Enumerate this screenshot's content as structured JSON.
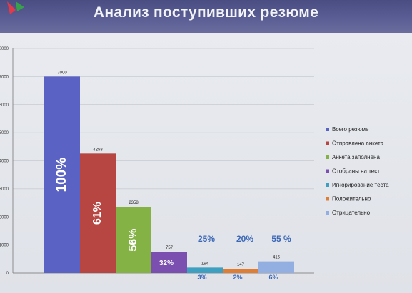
{
  "header": {
    "title": "Анализ поступивших резюме"
  },
  "chart_data": {
    "type": "bar",
    "title": "Анализ поступивших резюме",
    "ylim": [
      0,
      8000
    ],
    "yticks": [
      "0",
      "1000",
      "2000",
      "3000",
      "4000",
      "5000",
      "6000",
      "7000",
      "8000"
    ],
    "grid": true,
    "legend": "right",
    "series": [
      {
        "name": "Всего резюме",
        "value": 7000,
        "value_label": "7000",
        "percent": "100%",
        "color": "#5a62c4"
      },
      {
        "name": "Отправлена анкета",
        "value": 4258,
        "value_label": "4258",
        "percent": "61%",
        "color": "#b74541"
      },
      {
        "name": "Анкета заполнена",
        "value": 2358,
        "value_label": "2358",
        "percent": "56%",
        "color": "#84b245"
      },
      {
        "name": "Отобраны на тест",
        "value": 757,
        "value_label": "757",
        "percent": "32%",
        "color": "#7a4fb0"
      },
      {
        "name": "Игнорирование теста",
        "value": 194,
        "value_label": "194",
        "percent": "3%",
        "color": "#3e9fc0"
      },
      {
        "name": "Положительно",
        "value": 147,
        "value_label": "147",
        "percent": "2%",
        "color": "#df7d35"
      },
      {
        "name": "Отрицательно",
        "value": 416,
        "value_label": "416",
        "percent": "6%",
        "color": "#93aee0"
      }
    ],
    "annotations": [
      "25%",
      "20%",
      "55 %"
    ]
  }
}
